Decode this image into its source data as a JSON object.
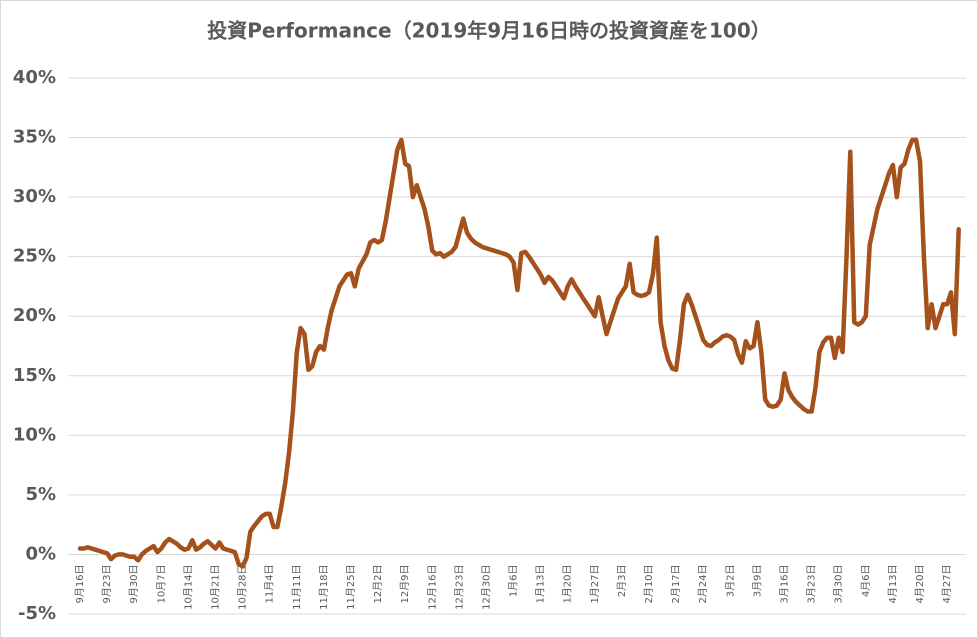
{
  "chart_data": {
    "type": "line",
    "title": "投資Performance（2019年9月16日時の投資資産を100）",
    "categories": [
      "9月16日",
      null,
      null,
      null,
      null,
      null,
      null,
      "9月23日",
      null,
      null,
      null,
      null,
      null,
      null,
      "9月30日",
      null,
      null,
      null,
      null,
      null,
      null,
      "10月7日",
      null,
      null,
      null,
      null,
      null,
      null,
      "10月14日",
      null,
      null,
      null,
      null,
      null,
      null,
      "10月21日",
      null,
      null,
      null,
      null,
      null,
      null,
      "10月28日",
      null,
      null,
      null,
      null,
      null,
      null,
      "11月4日",
      null,
      null,
      null,
      null,
      null,
      null,
      "11月11日",
      null,
      null,
      null,
      null,
      null,
      null,
      "11月18日",
      null,
      null,
      null,
      null,
      null,
      null,
      "11月25日",
      null,
      null,
      null,
      null,
      null,
      null,
      "12月2日",
      null,
      null,
      null,
      null,
      null,
      null,
      "12月9日",
      null,
      null,
      null,
      null,
      null,
      null,
      "12月16日",
      null,
      null,
      null,
      null,
      null,
      null,
      "12月23日",
      null,
      null,
      null,
      null,
      null,
      null,
      "12月30日",
      null,
      null,
      null,
      null,
      null,
      null,
      "1月6日",
      null,
      null,
      null,
      null,
      null,
      null,
      "1月13日",
      null,
      null,
      null,
      null,
      null,
      null,
      "1月20日",
      null,
      null,
      null,
      null,
      null,
      null,
      "1月27日",
      null,
      null,
      null,
      null,
      null,
      null,
      "2月3日",
      null,
      null,
      null,
      null,
      null,
      null,
      "2月10日",
      null,
      null,
      null,
      null,
      null,
      null,
      "2月17日",
      null,
      null,
      null,
      null,
      null,
      null,
      "2月24日",
      null,
      null,
      null,
      null,
      null,
      null,
      "3月2日",
      null,
      null,
      null,
      null,
      null,
      null,
      "3月9日",
      null,
      null,
      null,
      null,
      null,
      null,
      "3月16日",
      null,
      null,
      null,
      null,
      null,
      null,
      "3月23日",
      null,
      null,
      null,
      null,
      null,
      null,
      "3月30日",
      null,
      null,
      null,
      null,
      null,
      null,
      "4月6日",
      null,
      null,
      null,
      null,
      null,
      null,
      "4月13日",
      null,
      null,
      null,
      null,
      null,
      null,
      "4月20日",
      null,
      null,
      null,
      null,
      null,
      null,
      "4月27日",
      null,
      null,
      null
    ],
    "series": [
      {
        "name": "投資Performance",
        "color": "#a5511b",
        "values": [
          0.5,
          0.5,
          0.6,
          0.5,
          0.4,
          0.3,
          0.2,
          0.1,
          -0.4,
          -0.1,
          0.0,
          0.0,
          -0.1,
          -0.2,
          -0.2,
          -0.5,
          0.0,
          0.3,
          0.5,
          0.7,
          0.2,
          0.5,
          1.0,
          1.3,
          1.1,
          0.9,
          0.6,
          0.4,
          0.5,
          1.2,
          0.4,
          0.6,
          0.9,
          1.1,
          0.8,
          0.5,
          1.0,
          0.5,
          0.4,
          0.3,
          0.2,
          -0.8,
          -1.0,
          -0.3,
          1.9,
          2.4,
          2.8,
          3.2,
          3.4,
          3.4,
          2.3,
          2.3,
          4.0,
          6.0,
          8.5,
          12.0,
          17.0,
          19.0,
          18.5,
          15.5,
          15.8,
          17.0,
          17.5,
          17.2,
          19.0,
          20.5,
          21.5,
          22.5,
          23.0,
          23.5,
          23.6,
          22.5,
          24.0,
          24.6,
          25.2,
          26.2,
          26.4,
          26.2,
          26.4,
          28.0,
          30.0,
          32.0,
          34.0,
          34.8,
          32.8,
          32.6,
          30.0,
          31.0,
          30.0,
          29.0,
          27.5,
          25.5,
          25.2,
          25.3,
          25.0,
          25.2,
          25.4,
          25.8,
          27.0,
          28.2,
          27.0,
          26.5,
          26.2,
          26.0,
          25.8,
          25.7,
          25.6,
          25.5,
          25.4,
          25.3,
          25.2,
          25.0,
          24.5,
          22.2,
          25.3,
          25.4,
          25.0,
          24.5,
          24.0,
          23.5,
          22.8,
          23.3,
          23.0,
          22.5,
          22.0,
          21.5,
          22.5,
          23.1,
          22.5,
          22.0,
          21.5,
          21.0,
          20.5,
          20.0,
          21.6,
          20.0,
          18.5,
          19.5,
          20.5,
          21.5,
          22.0,
          22.5,
          24.4,
          22.0,
          21.8,
          21.7,
          21.8,
          22.0,
          23.5,
          26.6,
          19.5,
          17.5,
          16.3,
          15.6,
          15.5,
          18.0,
          21.0,
          21.8,
          21.0,
          20.0,
          19.0,
          18.0,
          17.6,
          17.5,
          17.8,
          18.0,
          18.3,
          18.4,
          18.3,
          18.0,
          16.8,
          16.1,
          17.9,
          17.3,
          17.5,
          19.5,
          17.0,
          13.0,
          12.5,
          12.4,
          12.5,
          13.0,
          15.2,
          13.8,
          13.2,
          12.8,
          12.5,
          12.2,
          12.0,
          12.0,
          14.0,
          17.0,
          17.8,
          18.2,
          18.2,
          16.5,
          18.2,
          17.0,
          25.0,
          33.8,
          19.5,
          19.3,
          19.5,
          20.0,
          26.0,
          27.5,
          29.0,
          30.0,
          31.0,
          32.0,
          32.7,
          30.0,
          32.5,
          32.8,
          34.0,
          34.8,
          34.8,
          33.0,
          25.0,
          19.0,
          21.0,
          19.0,
          20.0,
          21.0,
          21.0,
          22.0,
          18.5,
          27.3
        ]
      }
    ],
    "ylim": [
      -5,
      40
    ],
    "yticks": [
      {
        "value": -5,
        "label": "-5%"
      },
      {
        "value": 0,
        "label": "0%"
      },
      {
        "value": 5,
        "label": "5%"
      },
      {
        "value": 10,
        "label": "10%"
      },
      {
        "value": 15,
        "label": "15%"
      },
      {
        "value": 20,
        "label": "20%"
      },
      {
        "value": 25,
        "label": "25%"
      },
      {
        "value": 30,
        "label": "30%"
      },
      {
        "value": 35,
        "label": "35%"
      },
      {
        "value": 40,
        "label": "40%"
      }
    ],
    "grid": true
  }
}
